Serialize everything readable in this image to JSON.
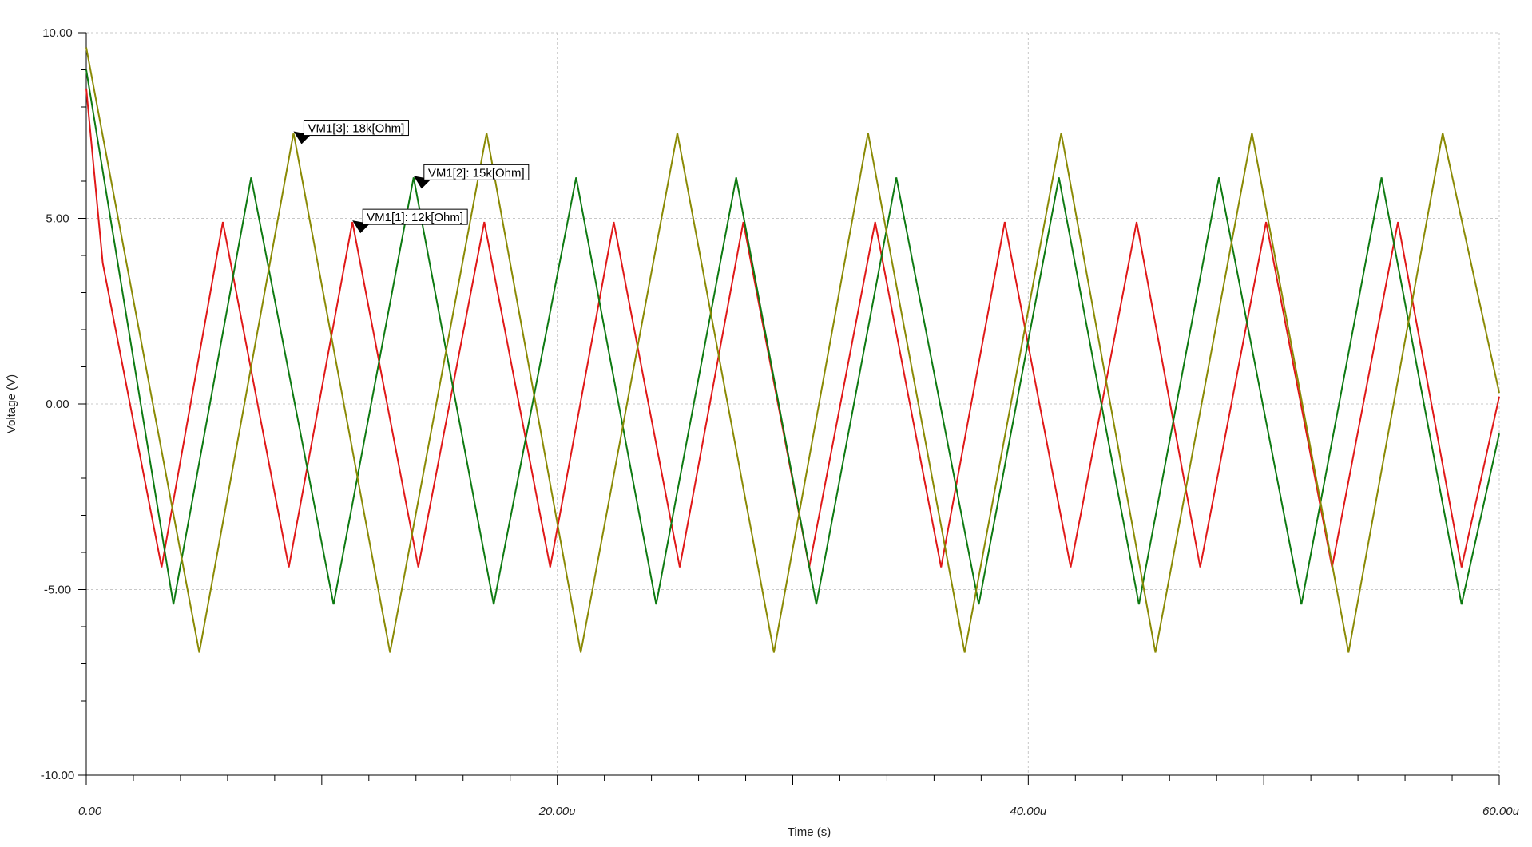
{
  "chart_data": {
    "type": "line",
    "xlabel": "Time (s)",
    "ylabel": "Voltage (V)",
    "xlim": [
      0,
      60
    ],
    "ylim": [
      -10,
      10
    ],
    "x_ticks": [
      0,
      20,
      40,
      60
    ],
    "x_tick_labels": [
      "0.00",
      "20.00u",
      "40.00u",
      "60.00u"
    ],
    "y_ticks": [
      10,
      5,
      0,
      -5,
      -10
    ],
    "y_tick_labels": [
      "10.00",
      "5.00",
      "0.00",
      "-5.00",
      "-10.00"
    ],
    "grid": true,
    "series": [
      {
        "name": "VM1[1]: 12k[Ohm]",
        "color": "#e01818",
        "x": [
          0,
          0.7,
          3.2,
          5.8,
          8.6,
          11.3,
          14.1,
          16.9,
          19.7,
          22.4,
          25.2,
          27.9,
          30.7,
          33.5,
          36.3,
          39.0,
          41.8,
          44.6,
          47.3,
          50.1,
          52.9,
          55.7,
          58.4,
          60
        ],
        "values": [
          8.5,
          3.8,
          -4.4,
          4.9,
          -4.4,
          4.9,
          -4.4,
          4.9,
          -4.4,
          4.9,
          -4.4,
          4.9,
          -4.4,
          4.9,
          -4.4,
          4.9,
          -4.4,
          4.9,
          -4.4,
          4.9,
          -4.4,
          4.9,
          -4.4,
          0.2
        ]
      },
      {
        "name": "VM1[2]: 15k[Ohm]",
        "color": "#0e7a12",
        "x": [
          0,
          3.7,
          7.0,
          10.5,
          13.9,
          17.3,
          20.8,
          24.2,
          27.6,
          31.0,
          34.4,
          37.9,
          41.3,
          44.7,
          48.1,
          51.6,
          55.0,
          58.4,
          60
        ],
        "values": [
          9.0,
          -5.4,
          6.1,
          -5.4,
          6.1,
          -5.4,
          6.1,
          -5.4,
          6.1,
          -5.4,
          6.1,
          -5.4,
          6.1,
          -5.4,
          6.1,
          -5.4,
          6.1,
          -5.4,
          -0.8
        ]
      },
      {
        "name": "VM1[3]: 18k[Ohm]",
        "color": "#8a8a05",
        "x": [
          0,
          4.8,
          8.8,
          12.9,
          17.0,
          21.0,
          25.1,
          29.2,
          33.2,
          37.3,
          41.4,
          45.4,
          49.5,
          53.6,
          57.6,
          60
        ],
        "values": [
          9.6,
          -6.7,
          7.3,
          -6.7,
          7.3,
          -6.7,
          7.3,
          -6.7,
          7.3,
          -6.7,
          7.3,
          -6.7,
          7.3,
          -6.7,
          7.3,
          0.3
        ]
      }
    ],
    "annotations": [
      {
        "text": "VM1[1]: 12k[Ohm]",
        "x": 11.3,
        "y": 4.9
      },
      {
        "text": "VM1[2]: 15k[Ohm]",
        "x": 13.9,
        "y": 6.1
      },
      {
        "text": "VM1[3]: 18k[Ohm]",
        "x": 8.8,
        "y": 7.3
      }
    ]
  }
}
